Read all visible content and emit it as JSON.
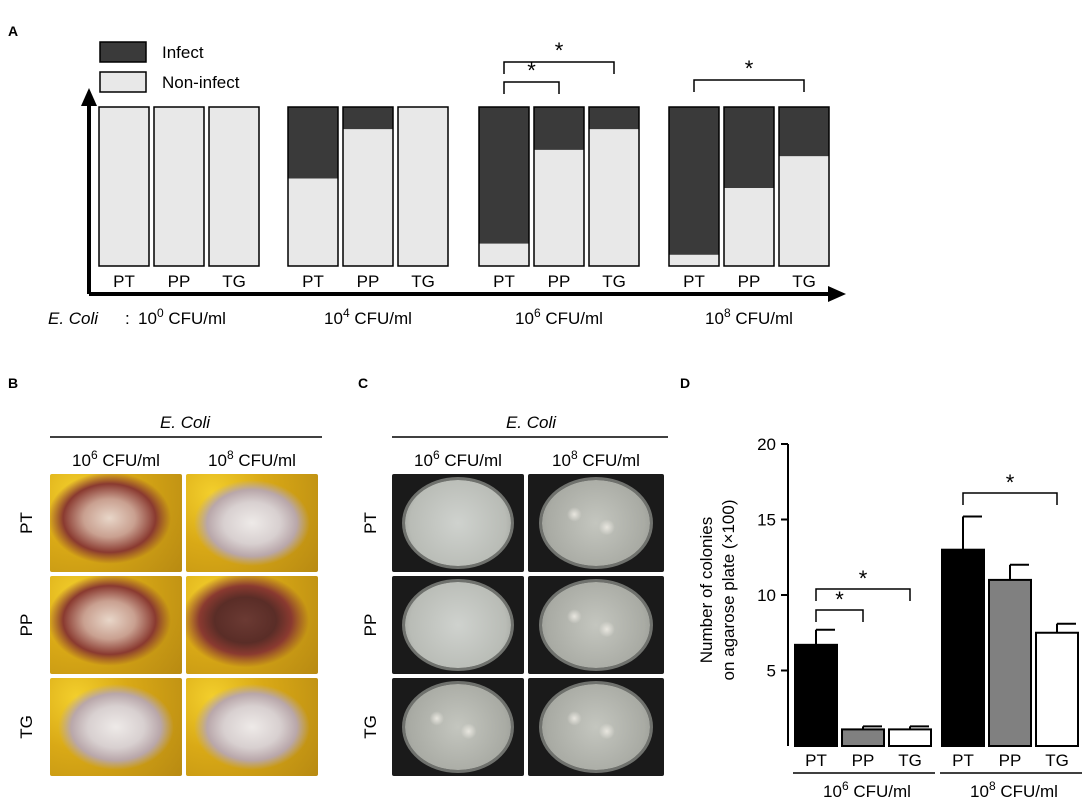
{
  "panel_labels": {
    "a": "A",
    "b": "B",
    "c": "C",
    "d": "D"
  },
  "colors": {
    "infect": "#3a3a3a",
    "non_infect": "#e8e8e8",
    "pt": "#000000",
    "pp": "#808080",
    "tg": "#ffffff"
  },
  "chart_data": [
    {
      "type": "bar",
      "stacked": true,
      "panel": "A",
      "legend": [
        "Infect",
        "Non-infect"
      ],
      "x_axis_prefix": "E. Coli",
      "group_label_suffix": " CFU/ml",
      "groups": [
        {
          "exp": "0",
          "categories": [
            "PT",
            "PP",
            "TG"
          ],
          "non_infect": [
            1.0,
            1.0,
            1.0
          ]
        },
        {
          "exp": "4",
          "categories": [
            "PT",
            "PP",
            "TG"
          ],
          "non_infect": [
            0.55,
            0.86,
            1.0
          ]
        },
        {
          "exp": "6",
          "categories": [
            "PT",
            "PP",
            "TG"
          ],
          "non_infect": [
            0.14,
            0.73,
            0.86
          ]
        },
        {
          "exp": "8",
          "categories": [
            "PT",
            "PP",
            "TG"
          ],
          "non_infect": [
            0.07,
            0.49,
            0.69
          ]
        }
      ],
      "significance": [
        {
          "group": 2,
          "from": 0,
          "to": 1,
          "label": "*"
        },
        {
          "group": 2,
          "from": 0,
          "to": 2,
          "label": "*"
        },
        {
          "group": 3,
          "from": 0,
          "to": 2,
          "label": "*"
        }
      ]
    },
    {
      "type": "bar",
      "panel": "D",
      "ylabel_line1": "Number of colonies",
      "ylabel_line2": "on agarose plate (×100)",
      "ylim": [
        0,
        20
      ],
      "yticks": [
        5,
        10,
        15,
        20
      ],
      "group_label_suffix": " CFU/ml",
      "groups": [
        {
          "exp": "6",
          "categories": [
            "PT",
            "PP",
            "TG"
          ],
          "values": [
            6.7,
            1.1,
            1.1
          ],
          "errors": [
            1.0,
            0.2,
            0.2
          ]
        },
        {
          "exp": "8",
          "categories": [
            "PT",
            "PP",
            "TG"
          ],
          "values": [
            13.0,
            11.0,
            7.5
          ],
          "errors": [
            2.2,
            1.0,
            0.6
          ]
        }
      ],
      "significance": [
        {
          "group": 0,
          "from": 0,
          "to": 1,
          "label": "*"
        },
        {
          "group": 0,
          "from": 0,
          "to": 2,
          "label": "*"
        },
        {
          "group": 1,
          "from": 0,
          "to": 2,
          "label": "*"
        }
      ]
    }
  ],
  "photo_panels": [
    {
      "panel": "B",
      "title": "E. Coli",
      "columns": [
        "10",
        "10"
      ],
      "column_exps": [
        "6",
        "8"
      ],
      "column_suffix": " CFU/ml",
      "rows": [
        "PT",
        "PP",
        "TG"
      ]
    },
    {
      "panel": "C",
      "title": "E. Coli",
      "columns": [
        "10",
        "10"
      ],
      "column_exps": [
        "6",
        "8"
      ],
      "column_suffix": " CFU/ml",
      "rows": [
        "PT",
        "PP",
        "TG"
      ]
    }
  ]
}
